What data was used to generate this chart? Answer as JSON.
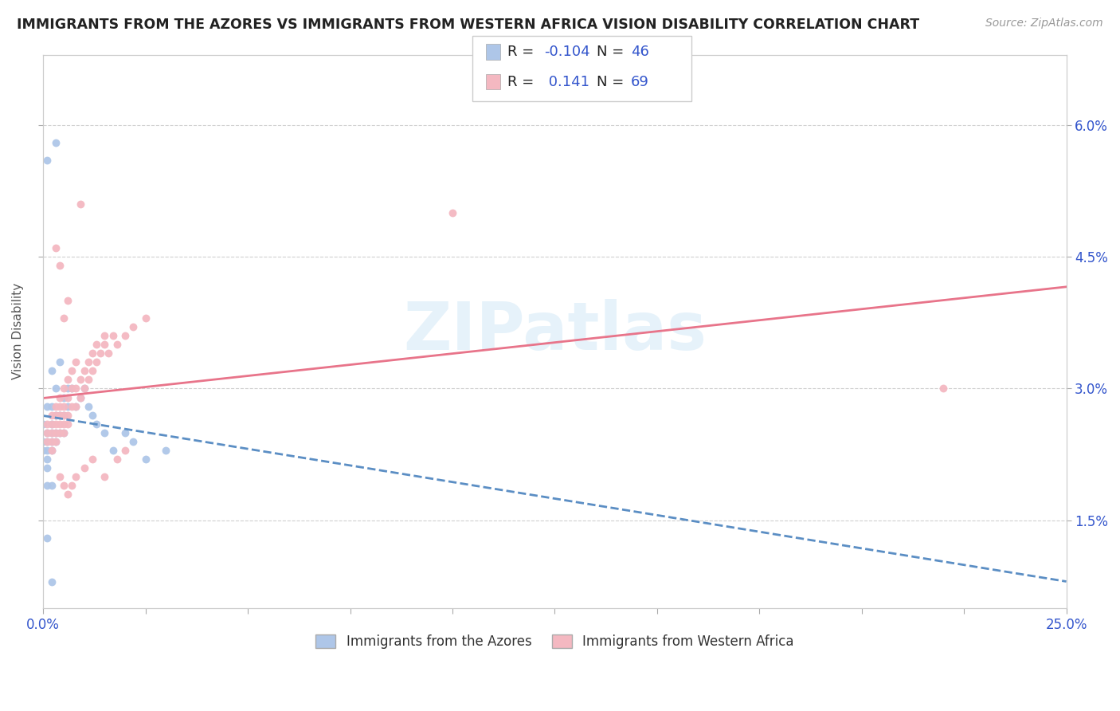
{
  "title": "IMMIGRANTS FROM THE AZORES VS IMMIGRANTS FROM WESTERN AFRICA VISION DISABILITY CORRELATION CHART",
  "source": "Source: ZipAtlas.com",
  "ylabel": "Vision Disability",
  "xlim": [
    0.0,
    0.25
  ],
  "ylim": [
    0.005,
    0.068
  ],
  "ytick_vals": [
    0.015,
    0.03,
    0.045,
    0.06
  ],
  "ytick_labels": [
    "1.5%",
    "3.0%",
    "4.5%",
    "6.0%"
  ],
  "R_azores": -0.104,
  "N_azores": 46,
  "R_africa": 0.141,
  "N_africa": 69,
  "color_azores": "#aec6e8",
  "color_africa": "#f4b8c1",
  "line_color_azores": "#5b8ec4",
  "line_color_africa": "#e8748a",
  "watermark": "ZIPatlas",
  "background_color": "#ffffff",
  "legend_R_color": "#3355cc",
  "scatter_azores": [
    [
      0.0,
      0.026
    ],
    [
      0.0,
      0.024
    ],
    [
      0.0,
      0.023
    ],
    [
      0.001,
      0.028
    ],
    [
      0.001,
      0.025
    ],
    [
      0.001,
      0.024
    ],
    [
      0.001,
      0.023
    ],
    [
      0.001,
      0.022
    ],
    [
      0.001,
      0.021
    ],
    [
      0.002,
      0.032
    ],
    [
      0.002,
      0.028
    ],
    [
      0.002,
      0.026
    ],
    [
      0.002,
      0.025
    ],
    [
      0.002,
      0.024
    ],
    [
      0.002,
      0.023
    ],
    [
      0.003,
      0.058
    ],
    [
      0.003,
      0.03
    ],
    [
      0.003,
      0.027
    ],
    [
      0.003,
      0.025
    ],
    [
      0.003,
      0.024
    ],
    [
      0.004,
      0.033
    ],
    [
      0.004,
      0.027
    ],
    [
      0.004,
      0.025
    ],
    [
      0.005,
      0.029
    ],
    [
      0.005,
      0.027
    ],
    [
      0.005,
      0.025
    ],
    [
      0.006,
      0.03
    ],
    [
      0.006,
      0.028
    ],
    [
      0.007,
      0.03
    ],
    [
      0.008,
      0.028
    ],
    [
      0.009,
      0.029
    ],
    [
      0.01,
      0.03
    ],
    [
      0.011,
      0.028
    ],
    [
      0.012,
      0.027
    ],
    [
      0.013,
      0.026
    ],
    [
      0.015,
      0.025
    ],
    [
      0.017,
      0.023
    ],
    [
      0.02,
      0.025
    ],
    [
      0.022,
      0.024
    ],
    [
      0.025,
      0.022
    ],
    [
      0.001,
      0.019
    ],
    [
      0.002,
      0.019
    ],
    [
      0.001,
      0.013
    ],
    [
      0.002,
      0.008
    ],
    [
      0.001,
      0.056
    ],
    [
      0.03,
      0.023
    ]
  ],
  "scatter_africa": [
    [
      0.001,
      0.026
    ],
    [
      0.001,
      0.025
    ],
    [
      0.001,
      0.024
    ],
    [
      0.002,
      0.027
    ],
    [
      0.002,
      0.026
    ],
    [
      0.002,
      0.025
    ],
    [
      0.002,
      0.024
    ],
    [
      0.002,
      0.023
    ],
    [
      0.003,
      0.028
    ],
    [
      0.003,
      0.027
    ],
    [
      0.003,
      0.026
    ],
    [
      0.003,
      0.025
    ],
    [
      0.003,
      0.024
    ],
    [
      0.004,
      0.044
    ],
    [
      0.004,
      0.029
    ],
    [
      0.004,
      0.028
    ],
    [
      0.004,
      0.027
    ],
    [
      0.004,
      0.026
    ],
    [
      0.004,
      0.025
    ],
    [
      0.004,
      0.02
    ],
    [
      0.005,
      0.038
    ],
    [
      0.005,
      0.03
    ],
    [
      0.005,
      0.028
    ],
    [
      0.005,
      0.027
    ],
    [
      0.005,
      0.026
    ],
    [
      0.005,
      0.025
    ],
    [
      0.005,
      0.019
    ],
    [
      0.006,
      0.04
    ],
    [
      0.006,
      0.031
    ],
    [
      0.006,
      0.029
    ],
    [
      0.006,
      0.027
    ],
    [
      0.006,
      0.026
    ],
    [
      0.006,
      0.018
    ],
    [
      0.007,
      0.032
    ],
    [
      0.007,
      0.03
    ],
    [
      0.007,
      0.028
    ],
    [
      0.007,
      0.019
    ],
    [
      0.008,
      0.033
    ],
    [
      0.008,
      0.03
    ],
    [
      0.008,
      0.028
    ],
    [
      0.008,
      0.02
    ],
    [
      0.009,
      0.051
    ],
    [
      0.009,
      0.031
    ],
    [
      0.009,
      0.029
    ],
    [
      0.01,
      0.032
    ],
    [
      0.01,
      0.03
    ],
    [
      0.01,
      0.021
    ],
    [
      0.011,
      0.033
    ],
    [
      0.011,
      0.031
    ],
    [
      0.012,
      0.034
    ],
    [
      0.012,
      0.032
    ],
    [
      0.012,
      0.022
    ],
    [
      0.013,
      0.035
    ],
    [
      0.013,
      0.033
    ],
    [
      0.014,
      0.034
    ],
    [
      0.015,
      0.036
    ],
    [
      0.015,
      0.035
    ],
    [
      0.015,
      0.02
    ],
    [
      0.016,
      0.034
    ],
    [
      0.017,
      0.036
    ],
    [
      0.018,
      0.035
    ],
    [
      0.018,
      0.022
    ],
    [
      0.02,
      0.036
    ],
    [
      0.02,
      0.023
    ],
    [
      0.022,
      0.037
    ],
    [
      0.025,
      0.038
    ],
    [
      0.1,
      0.05
    ],
    [
      0.22,
      0.03
    ],
    [
      0.003,
      0.046
    ]
  ]
}
